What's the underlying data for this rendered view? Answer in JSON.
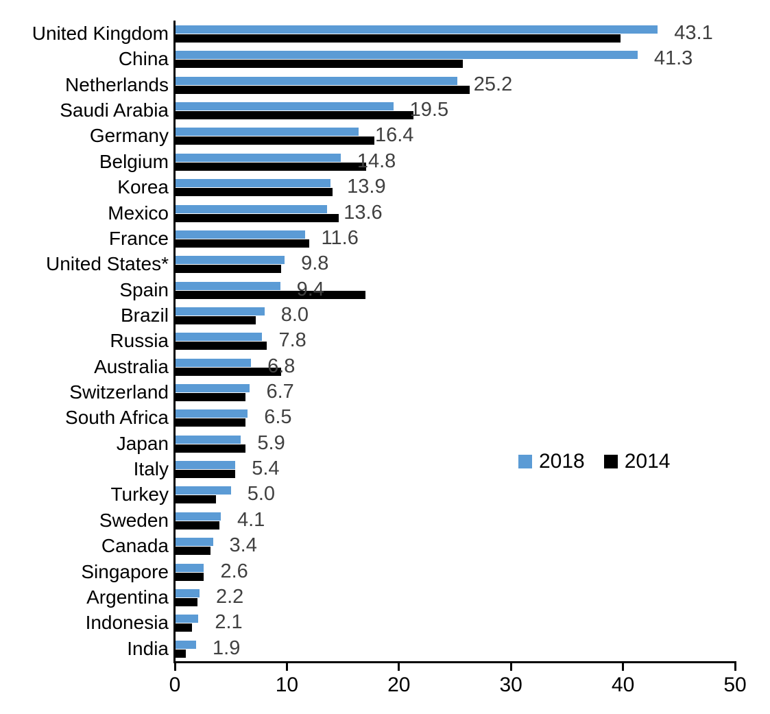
{
  "chart_data": {
    "type": "bar",
    "orientation": "horizontal",
    "title": "",
    "xlabel": "",
    "ylabel": "",
    "xlim": [
      0,
      50
    ],
    "x_ticks": [
      "0",
      "10",
      "20",
      "30",
      "40",
      "50"
    ],
    "grid": false,
    "legend_position": "middle-right",
    "categories": [
      "United Kingdom",
      "China",
      "Netherlands",
      "Saudi Arabia",
      "Germany",
      "Belgium",
      "Korea",
      "Mexico",
      "France",
      "United States*",
      "Spain",
      "Brazil",
      "Russia",
      "Australia",
      "Switzerland",
      "South Africa",
      "Japan",
      "Italy",
      "Turkey",
      "Sweden",
      "Canada",
      "Singapore",
      "Argentina",
      "Indonesia",
      "India"
    ],
    "series": [
      {
        "name": "2018",
        "color": "#5B9BD5",
        "values": [
          43.1,
          41.3,
          25.2,
          19.5,
          16.4,
          14.8,
          13.9,
          13.6,
          11.6,
          9.8,
          9.4,
          8.0,
          7.8,
          6.8,
          6.7,
          6.5,
          5.9,
          5.4,
          5.0,
          4.1,
          3.4,
          2.6,
          2.2,
          2.1,
          1.9
        ],
        "data_labels": [
          "43.1",
          "41.3",
          "25.2",
          "19.5",
          "16.4",
          "14.8",
          "13.9",
          "13.6",
          "11.6",
          "9.8",
          "9.4",
          "8.0",
          "7.8",
          "6.8",
          "6.7",
          "6.5",
          "5.9",
          "5.4",
          "5.0",
          "4.1",
          "3.4",
          "2.6",
          "2.2",
          "2.1",
          "1.9"
        ]
      },
      {
        "name": "2014",
        "color": "#000000",
        "values": [
          39.8,
          25.7,
          26.3,
          21.3,
          17.8,
          17.1,
          14.1,
          14.6,
          12.0,
          9.5,
          17.0,
          7.2,
          8.2,
          9.5,
          6.3,
          6.3,
          6.3,
          5.4,
          3.7,
          4.0,
          3.2,
          2.6,
          2.0,
          1.5,
          1.0
        ],
        "data_labels": []
      }
    ],
    "value_label_color": "#404040",
    "axis_color": "#000000"
  },
  "legend": {
    "items": [
      {
        "label": "2018",
        "color": "#5B9BD5"
      },
      {
        "label": "2014",
        "color": "#000000"
      }
    ]
  }
}
